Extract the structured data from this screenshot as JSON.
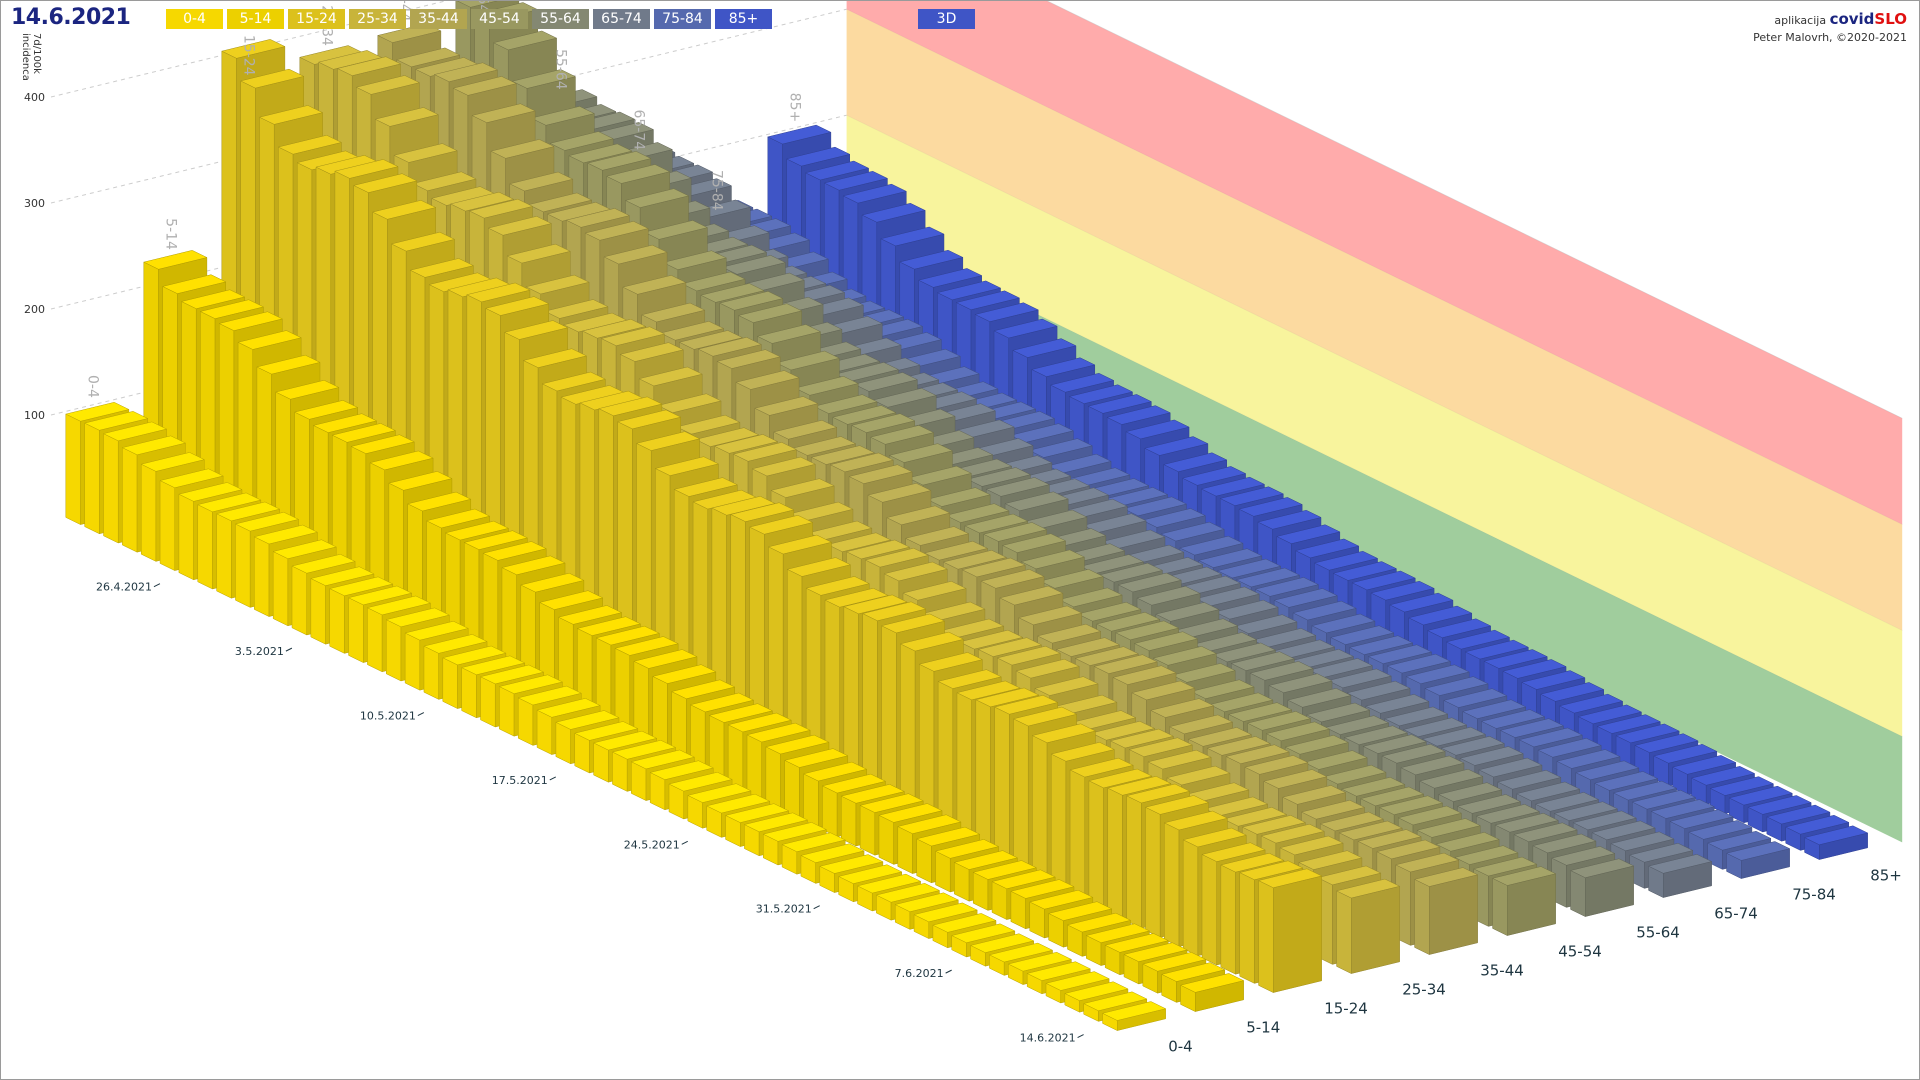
{
  "header": {
    "date": "14.6.2021",
    "mode_button": "3D",
    "credit_app_label": "aplikacija",
    "credit_brand_a": "covid",
    "credit_brand_b": "SLO",
    "credit_author": "Peter Malovrh, ©2020-2021"
  },
  "legend": [
    {
      "label": "0-4",
      "color": "#f6d800"
    },
    {
      "label": "5-14",
      "color": "#ecd000"
    },
    {
      "label": "15-24",
      "color": "#dcc11c"
    },
    {
      "label": "25-34",
      "color": "#c8b43a"
    },
    {
      "label": "35-44",
      "color": "#b2a550"
    },
    {
      "label": "45-54",
      "color": "#999860"
    },
    {
      "label": "55-64",
      "color": "#848872"
    },
    {
      "label": "65-74",
      "color": "#707a8a"
    },
    {
      "label": "75-84",
      "color": "#5569ae"
    },
    {
      "label": "85+",
      "color": "#3f55c6"
    }
  ],
  "chart_data": {
    "type": "bar",
    "subtype": "3d-bar",
    "ylabel_line1": "7d/100k",
    "ylabel_line2": "incidenca",
    "ylim": [
      0,
      400
    ],
    "y_ticks": [
      100,
      200,
      300,
      400
    ],
    "date_ticks": [
      "26.4.2021",
      "3.5.2021",
      "10.5.2021",
      "17.5.2021",
      "24.5.2021",
      "31.5.2021",
      "7.6.2021",
      "14.6.2021"
    ],
    "days": 56,
    "categories": [
      "0-4",
      "5-14",
      "15-24",
      "25-34",
      "35-44",
      "45-54",
      "55-64",
      "65-74",
      "75-84",
      "85+"
    ],
    "series": [
      {
        "name": "0-4",
        "start": 100,
        "end": 10
      },
      {
        "name": "5-14",
        "start": 230,
        "end": 18
      },
      {
        "name": "15-24",
        "start": 385,
        "end": 95
      },
      {
        "name": "25-34",
        "start": 395,
        "end": 75
      },
      {
        "name": "35-44",
        "start": 400,
        "end": 65
      },
      {
        "name": "45-54",
        "start": 390,
        "end": 48
      },
      {
        "name": "55-64",
        "start": 300,
        "end": 38
      },
      {
        "name": "65-74",
        "start": 225,
        "end": 24
      },
      {
        "name": "75-84",
        "start": 150,
        "end": 18
      },
      {
        "name": "85+",
        "start": 205,
        "end": 14
      }
    ],
    "risk_bands": [
      {
        "from": 0,
        "to": 100,
        "color": "#8fc48c"
      },
      {
        "from": 100,
        "to": 200,
        "color": "#f7f28c"
      },
      {
        "from": 200,
        "to": 300,
        "color": "#fbd48f"
      },
      {
        "from": 300,
        "to": 400,
        "color": "#ff9c9c"
      }
    ]
  }
}
